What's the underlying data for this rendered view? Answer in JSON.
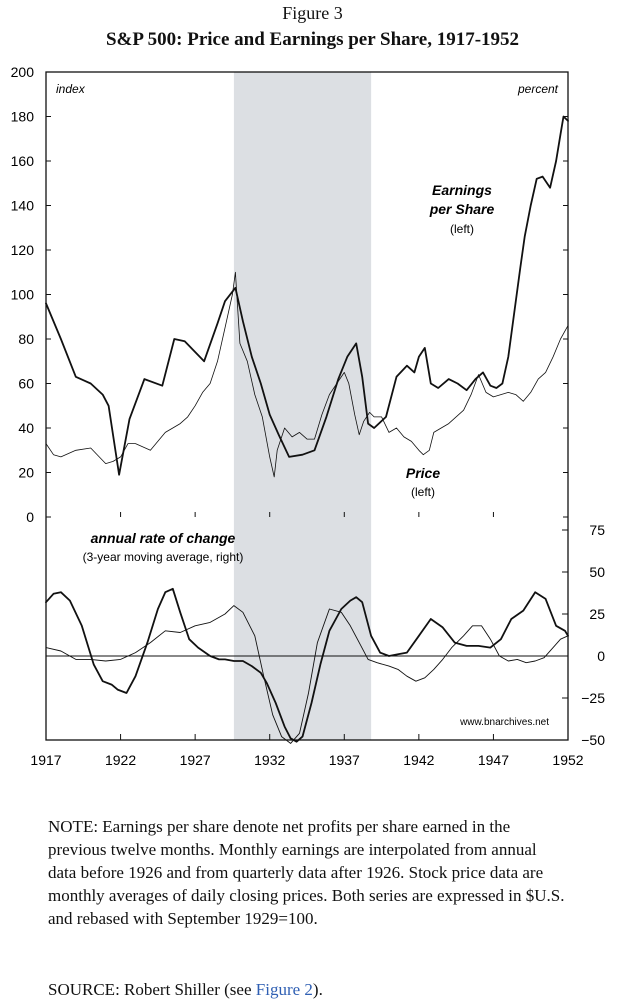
{
  "figure_label": "Figure 3",
  "title": "S&P 500: Price and Earnings per Share, 1917-1952",
  "chart_data": {
    "type": "line",
    "x_range": [
      1917,
      1952
    ],
    "x_ticks": [
      "1917",
      "1922",
      "1927",
      "1932",
      "1937",
      "1942",
      "1947",
      "1952"
    ],
    "left_axis": {
      "unit_label": "index",
      "range": [
        0,
        200
      ],
      "ticks": [
        "0",
        "20",
        "40",
        "60",
        "80",
        "100",
        "120",
        "140",
        "160",
        "180",
        "200"
      ]
    },
    "right_axis": {
      "unit_label": "percent",
      "range": [
        -50,
        75
      ],
      "ticks": [
        "75",
        "50",
        "25",
        "0",
        "−25",
        "−50"
      ]
    },
    "recession_shade": {
      "from": 1929.6,
      "to": 1938.8,
      "color": "#dcdfe3"
    },
    "upper_labels": {
      "eps": [
        "Earnings",
        "per Share",
        "(left)"
      ],
      "price": [
        "Price",
        "(left)"
      ]
    },
    "lower_labels": {
      "title": "annual rate of change",
      "subtitle": "(3-year moving average, right)"
    },
    "watermark": "www.bnarchives.net",
    "series": [
      {
        "name": "Earnings per Share",
        "panel": "upper",
        "width": 1.8,
        "x": [
          1917,
          1918,
          1919,
          1920,
          1920.8,
          1921.2,
          1921.9,
          1922.6,
          1923.6,
          1924.8,
          1925.6,
          1926.3,
          1927.6,
          1928.5,
          1929.0,
          1929.7,
          1930.2,
          1930.8,
          1931.4,
          1932.0,
          1932.6,
          1933.3,
          1934.2,
          1935.0,
          1935.8,
          1936.6,
          1937.2,
          1937.8,
          1938.2,
          1938.6,
          1939.0,
          1939.8,
          1940.5,
          1941.2,
          1941.7,
          1942.0,
          1942.4,
          1942.8,
          1943.3,
          1944.0,
          1944.6,
          1945.2,
          1945.8,
          1946.3,
          1946.8,
          1947.2,
          1947.6,
          1948.0,
          1948.4,
          1948.8,
          1949.1,
          1949.5,
          1949.9,
          1950.3,
          1950.8,
          1951.2,
          1951.5,
          1951.7,
          1952
        ],
        "y": [
          96,
          80,
          63,
          60,
          55,
          50,
          19,
          44,
          62,
          59,
          80,
          79,
          70,
          87,
          97,
          103,
          88,
          72,
          60,
          46,
          37,
          27,
          28,
          30,
          45,
          62,
          72,
          78,
          63,
          42,
          40,
          45,
          63,
          68,
          65,
          72,
          76,
          60,
          58,
          62,
          60,
          57,
          62,
          65,
          59,
          58,
          60,
          72,
          92,
          112,
          126,
          140,
          152,
          153,
          148,
          160,
          172,
          180,
          178
        ]
      },
      {
        "name": "Price",
        "panel": "upper",
        "width": 0.8,
        "x": [
          1917,
          1917.5,
          1918,
          1919,
          1920,
          1921,
          1921.5,
          1922,
          1922.5,
          1923,
          1924,
          1925,
          1925.5,
          1926,
          1926.5,
          1927,
          1927.5,
          1928,
          1928.5,
          1929,
          1929.5,
          1929.7,
          1930,
          1930.5,
          1931,
          1931.5,
          1932,
          1932.3,
          1932.5,
          1933,
          1933.5,
          1934,
          1934.5,
          1935,
          1935.5,
          1936,
          1936.5,
          1937,
          1937.3,
          1937.7,
          1938,
          1938.3,
          1938.7,
          1939,
          1939.5,
          1940,
          1940.5,
          1941,
          1941.5,
          1942,
          1942.3,
          1942.7,
          1943,
          1943.5,
          1944,
          1945,
          1945.5,
          1946,
          1946.5,
          1947,
          1947.5,
          1948,
          1948.5,
          1949,
          1949.5,
          1950,
          1950.5,
          1951,
          1951.5,
          1952
        ],
        "y": [
          33,
          28,
          27,
          30,
          31,
          24,
          25,
          27,
          33,
          33,
          30,
          38,
          40,
          42,
          45,
          50,
          56,
          60,
          70,
          85,
          100,
          110,
          78,
          70,
          55,
          45,
          27,
          18,
          30,
          40,
          36,
          38,
          35,
          35,
          46,
          55,
          60,
          65,
          60,
          46,
          37,
          43,
          47,
          45,
          45,
          38,
          40,
          36,
          34,
          30,
          28,
          30,
          38,
          40,
          42,
          48,
          55,
          64,
          56,
          54,
          55,
          56,
          55,
          52,
          56,
          62,
          65,
          72,
          80,
          86
        ]
      },
      {
        "name": "Earnings per Share rate of change",
        "panel": "lower",
        "width": 1.8,
        "x": [
          1917,
          1917.5,
          1918,
          1918.6,
          1919.4,
          1920.2,
          1920.8,
          1921.4,
          1921.8,
          1922.4,
          1923.0,
          1923.8,
          1924.5,
          1925.0,
          1925.5,
          1926.0,
          1926.6,
          1927.2,
          1928.0,
          1928.6,
          1929.0,
          1929.6,
          1930.2,
          1930.8,
          1931.4,
          1931.8,
          1932.4,
          1933.0,
          1933.4,
          1933.8,
          1934.2,
          1934.8,
          1935.4,
          1936.0,
          1936.8,
          1937.4,
          1937.8,
          1938.2,
          1938.8,
          1939.4,
          1940.0,
          1940.6,
          1941.2,
          1942.0,
          1942.8,
          1943.6,
          1944.4,
          1945.2,
          1946.0,
          1946.8,
          1947.5,
          1948.2,
          1949.0,
          1949.8,
          1950.5,
          1951.2,
          1951.8,
          1952
        ],
        "y": [
          32,
          37,
          38,
          33,
          18,
          -5,
          -15,
          -17,
          -20,
          -22,
          -12,
          8,
          28,
          38,
          40,
          26,
          10,
          5,
          0,
          -2,
          -2,
          -3,
          -3,
          -6,
          -10,
          -16,
          -28,
          -42,
          -49,
          -51,
          -48,
          -28,
          -5,
          15,
          28,
          33,
          35,
          32,
          12,
          2,
          0,
          1,
          2,
          12,
          22,
          17,
          8,
          6,
          6,
          5,
          10,
          22,
          27,
          38,
          34,
          18,
          15,
          12
        ]
      },
      {
        "name": "Price rate of change",
        "panel": "lower",
        "width": 0.9,
        "x": [
          1917,
          1918,
          1919,
          1920,
          1921,
          1922,
          1923,
          1924,
          1925,
          1926,
          1927,
          1928,
          1929,
          1929.6,
          1930.2,
          1931,
          1931.6,
          1932.2,
          1932.8,
          1933.4,
          1934,
          1934.6,
          1935.2,
          1936,
          1936.8,
          1937.4,
          1938,
          1938.6,
          1939.2,
          1940,
          1940.6,
          1941.2,
          1941.8,
          1942.4,
          1943,
          1943.6,
          1944.2,
          1945,
          1945.6,
          1946.2,
          1946.8,
          1947.4,
          1948,
          1948.6,
          1949.2,
          1949.8,
          1950.4,
          1951,
          1951.5,
          1952
        ],
        "y": [
          5,
          3,
          -2,
          -2,
          -3,
          -2,
          2,
          8,
          15,
          14,
          18,
          20,
          25,
          30,
          26,
          12,
          -12,
          -35,
          -48,
          -52,
          -46,
          -22,
          8,
          28,
          26,
          18,
          8,
          -2,
          -4,
          -6,
          -8,
          -12,
          -15,
          -13,
          -8,
          -2,
          5,
          12,
          18,
          18,
          10,
          0,
          -3,
          -2,
          -4,
          -3,
          -1,
          5,
          10,
          12
        ]
      }
    ]
  },
  "note": "NOTE: Earnings per share denote net profits per share earned in the previous twelve months. Monthly earnings are interpolated from annual data before 1926 and from quarterly data after 1926. Stock price data are monthly averages of daily closing prices. Both series are expressed in $U.S. and rebased with September 1929=100.",
  "source": {
    "prefix": "SOURCE: Robert Shiller (see ",
    "link": "Figure 2",
    "suffix": ")."
  }
}
